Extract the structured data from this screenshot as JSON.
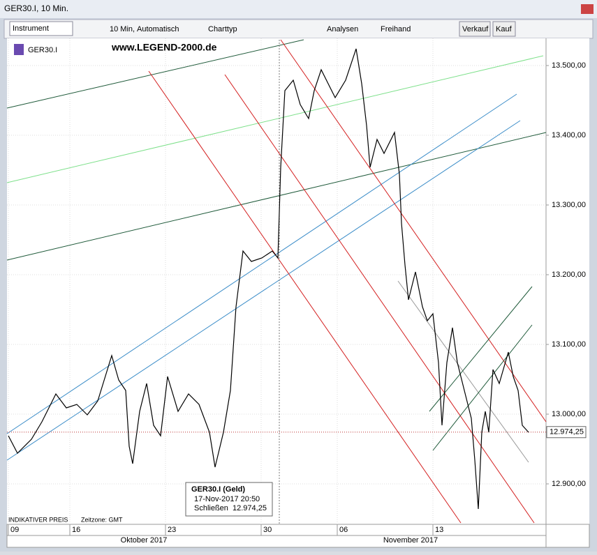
{
  "window": {
    "title": "GER30.I, 10 Min."
  },
  "toolbar": {
    "instrument": "Instrument",
    "timeframe": "10 Min,",
    "scale": "Automatisch",
    "chart_type": "Charttyp",
    "analyses": "Analysen",
    "freehand": "Freihand",
    "sell": "Verkauf",
    "buy": "Kauf"
  },
  "chart_data": {
    "type": "line",
    "title": "GER30.I",
    "watermark": "www.LEGEND-2000.de",
    "footer": {
      "price_type": "INDIKATIVER PREIS",
      "timezone": "Zeitzone: GMT"
    },
    "x": [
      0.2,
      1.5,
      3.5,
      5,
      7,
      8.5,
      10,
      11.5,
      13,
      15,
      16,
      17,
      17.5,
      18,
      19,
      20,
      21,
      22,
      23,
      24.5,
      26,
      27.5,
      29,
      29.8,
      31,
      32,
      32.8,
      33.8,
      35,
      36.5,
      38,
      38.8,
      39.2,
      39.8,
      41,
      42,
      43.2,
      44,
      45,
      46,
      47,
      48.5,
      50,
      50.8,
      51.5,
      52,
      53,
      54,
      55.5,
      56.2,
      56.5,
      57,
      57.5,
      58.5,
      59.5,
      60.2,
      61,
      61.8,
      62.3,
      63,
      63.8,
      64.5,
      65.5,
      66.5,
      67,
      67.5,
      68,
      68.5,
      69,
      69.6,
      70.5,
      71.8,
      72.5,
      73.2,
      73.8,
      74.7
    ],
    "series": [
      {
        "name": "GER30.I",
        "color": "#000000",
        "values": [
          12969,
          12944,
          12964,
          12989,
          13029,
          13009,
          13014,
          12999,
          13019,
          13084,
          13049,
          13034,
          12954,
          12929,
          13004,
          13044,
          12984,
          12969,
          13054,
          13004,
          13029,
          13014,
          12974,
          12924,
          12974,
          13034,
          13154,
          13234,
          13219,
          13224,
          13234,
          13224,
          13354,
          13464,
          13479,
          13444,
          13424,
          13464,
          13494,
          13474,
          13454,
          13479,
          13524,
          13474,
          13414,
          13354,
          13394,
          13374,
          13404,
          13344,
          13274,
          13214,
          13164,
          13204,
          13154,
          13134,
          13144,
          13074,
          12984,
          13074,
          13124,
          13074,
          13034,
          12994,
          12934,
          12864,
          12974,
          13004,
          12974,
          13064,
          13044,
          13089,
          13054,
          13034,
          12984,
          12974
        ]
      }
    ],
    "xlim": [
      0,
      77.2
    ],
    "xticks": [
      {
        "value": 0.2,
        "label": "09"
      },
      {
        "value": 9,
        "label": "16"
      },
      {
        "value": 22.7,
        "label": "23"
      },
      {
        "value": 36.4,
        "label": "30"
      },
      {
        "value": 47.3,
        "label": "06"
      },
      {
        "value": 61,
        "label": "13"
      }
    ],
    "month_ticks": [
      {
        "value": 19.6,
        "label": "Oktober 2017"
      },
      {
        "value": 57.8,
        "label": "November 2017"
      }
    ],
    "ylim": [
      12842,
      13539
    ],
    "yticks": [
      {
        "value": 12900,
        "label": "12.900,00"
      },
      {
        "value": 13000,
        "label": "13.000,00"
      },
      {
        "value": 13100,
        "label": "13.100,00"
      },
      {
        "value": 13200,
        "label": "13.200,00"
      },
      {
        "value": 13300,
        "label": "13.300,00"
      },
      {
        "value": 13400,
        "label": "13.400,00"
      },
      {
        "value": 13500,
        "label": "13.500,00"
      }
    ],
    "last_price": {
      "value": 12974.25,
      "label": "12.974,25"
    },
    "grid": true,
    "tooltip": {
      "title": "GER30.I (Geld)",
      "time": "17-Nov-2017 20:50",
      "label": "Schließen",
      "value": "12.974,25"
    }
  }
}
